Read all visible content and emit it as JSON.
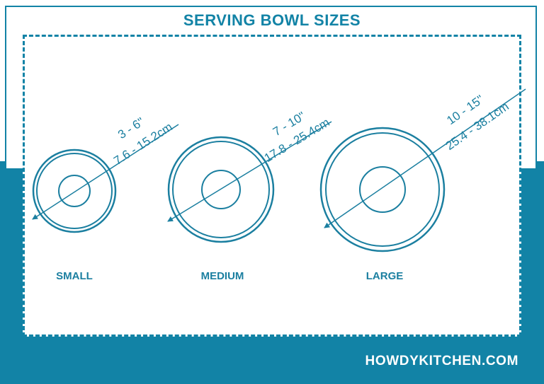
{
  "title": "SERVING BOWL SIZES",
  "colors": {
    "accent": "#1283a6",
    "line": "#1b7fa0",
    "background": "#ffffff"
  },
  "bowls": [
    {
      "id": "small",
      "label": "SMALL",
      "size_in": "3 - 6\"",
      "size_cm": "7.6 - 15.2cm"
    },
    {
      "id": "medium",
      "label": "MEDIUM",
      "size_in": "7 - 10\"",
      "size_cm": "17.8 - 25.4cm"
    },
    {
      "id": "large",
      "label": "LARGE",
      "size_in": "10 - 15\"",
      "size_cm": "25.4 - 38.1cm"
    }
  ],
  "brand": "HOWDYKITCHEN.COM"
}
